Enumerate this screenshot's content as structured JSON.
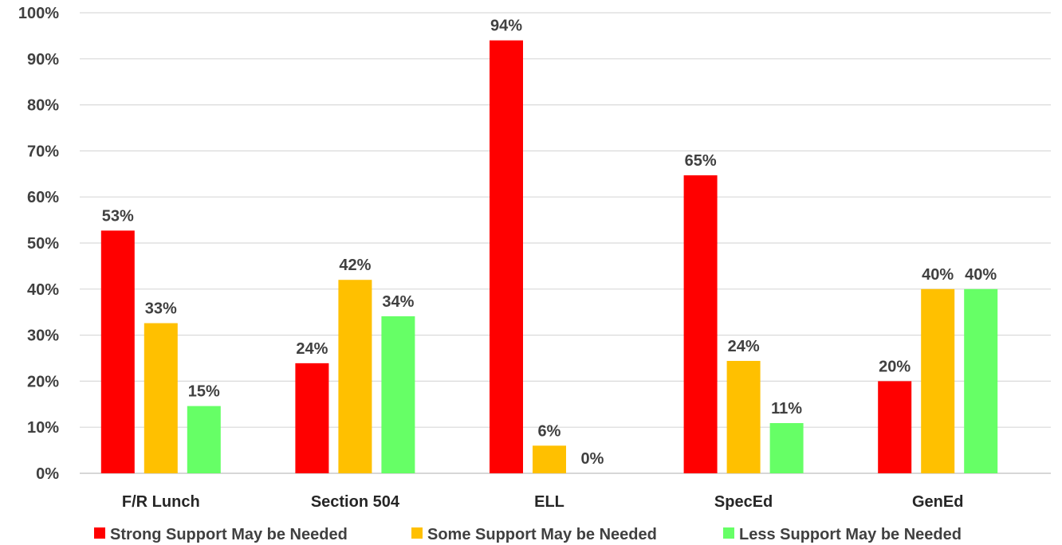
{
  "chart_data": {
    "type": "bar",
    "categories": [
      "F/R Lunch",
      "Section 504",
      "ELL",
      "SpecEd",
      "GenEd"
    ],
    "series": [
      {
        "name": "Strong Support May be Needed",
        "color": "#ff0000",
        "values": [
          52.7,
          23.9,
          94.0,
          64.7,
          20.0
        ],
        "labels": [
          "53%",
          "24%",
          "94%",
          "65%",
          "20%"
        ]
      },
      {
        "name": "Some Support May be Needed",
        "color": "#ffc000",
        "values": [
          32.6,
          42.0,
          6.0,
          24.4,
          40.0
        ],
        "labels": [
          "33%",
          "42%",
          "6%",
          "24%",
          "40%"
        ]
      },
      {
        "name": "Less Support May be Needed",
        "color": "#66ff66",
        "values": [
          14.6,
          34.1,
          0.0,
          10.9,
          40.0
        ],
        "labels": [
          "15%",
          "34%",
          "0%",
          "11%",
          "40%"
        ]
      }
    ],
    "y_ticks": [
      "0%",
      "10%",
      "20%",
      "30%",
      "40%",
      "50%",
      "60%",
      "70%",
      "80%",
      "90%",
      "100%"
    ],
    "ylim": [
      0,
      100
    ],
    "grid": true,
    "legend_position": "bottom",
    "title": "",
    "xlabel": "",
    "ylabel": ""
  }
}
